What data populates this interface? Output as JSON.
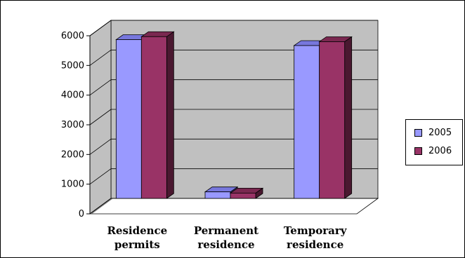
{
  "chart_data": {
    "type": "bar",
    "title": "",
    "xlabel": "",
    "ylabel": "",
    "categories": [
      [
        "Residence",
        "permits"
      ],
      [
        "Permanent",
        "residence"
      ],
      [
        "Temporary",
        "residence"
      ]
    ],
    "series": [
      {
        "name": "2005",
        "values": [
          5350,
          220,
          5150
        ],
        "color": "#9999ff",
        "top_color": "#7777dd",
        "side_color": "#4a4a88"
      },
      {
        "name": "2006",
        "values": [
          5450,
          180,
          5280
        ],
        "color": "#993366",
        "top_color": "#7a2850",
        "side_color": "#4a1830"
      }
    ],
    "ylim": [
      0,
      6000
    ],
    "yticks": [
      "0",
      "1000",
      "2000",
      "3000",
      "4000",
      "5000",
      "6000"
    ],
    "grid": true,
    "legend": "right",
    "style": "3d-clustered",
    "wall_color": "#c0c0c0",
    "floor_color": "#808080"
  }
}
